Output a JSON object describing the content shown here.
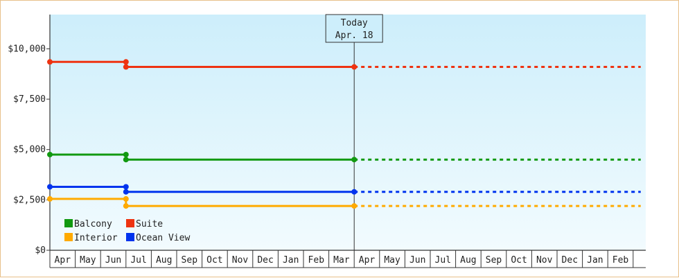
{
  "chart_data": {
    "type": "line",
    "style": "step",
    "y_ticks": [
      "$0",
      "$2,500",
      "$5,000",
      "$7,500",
      "$10,000"
    ],
    "y_tick_values": [
      0,
      2500,
      5000,
      7500,
      10000
    ],
    "ylim": [
      0,
      11700
    ],
    "x_month_labels": [
      "Apr",
      "May",
      "Jun",
      "Jul",
      "Aug",
      "Sep",
      "Oct",
      "Nov",
      "Dec",
      "Jan",
      "Feb",
      "Mar",
      "Apr",
      "May",
      "Jun",
      "Jul",
      "Aug",
      "Sep",
      "Oct",
      "Nov",
      "Dec",
      "Jan",
      "Feb"
    ],
    "x_range_months": [
      0,
      23.3
    ],
    "today": {
      "line1": "Today",
      "line2": "Apr. 18",
      "month_index": 12
    },
    "series": [
      {
        "name": "Balcony",
        "color": "#119911",
        "points": [
          [
            0,
            4750
          ],
          [
            3,
            4750
          ],
          [
            3,
            4500
          ],
          [
            12,
            4500
          ]
        ],
        "projection_until": 23.3
      },
      {
        "name": "Suite",
        "color": "#ee3311",
        "points": [
          [
            0,
            9350
          ],
          [
            3,
            9350
          ],
          [
            3,
            9100
          ],
          [
            12,
            9100
          ]
        ],
        "projection_until": 23.3
      },
      {
        "name": "Interior",
        "color": "#ffaa00",
        "points": [
          [
            0,
            2550
          ],
          [
            3,
            2550
          ],
          [
            3,
            2200
          ],
          [
            12,
            2200
          ]
        ],
        "projection_until": 23.3
      },
      {
        "name": "Ocean View",
        "color": "#0033ee",
        "points": [
          [
            0,
            3150
          ],
          [
            3,
            3150
          ],
          [
            3,
            2900
          ],
          [
            12,
            2900
          ]
        ],
        "projection_until": 23.3
      }
    ],
    "legend": {
      "placement": "bottom-left",
      "order": [
        "Balcony",
        "Suite",
        "Interior",
        "Ocean View"
      ]
    },
    "background_gradient": [
      "#cdeefb",
      "#f2fbfe"
    ]
  }
}
